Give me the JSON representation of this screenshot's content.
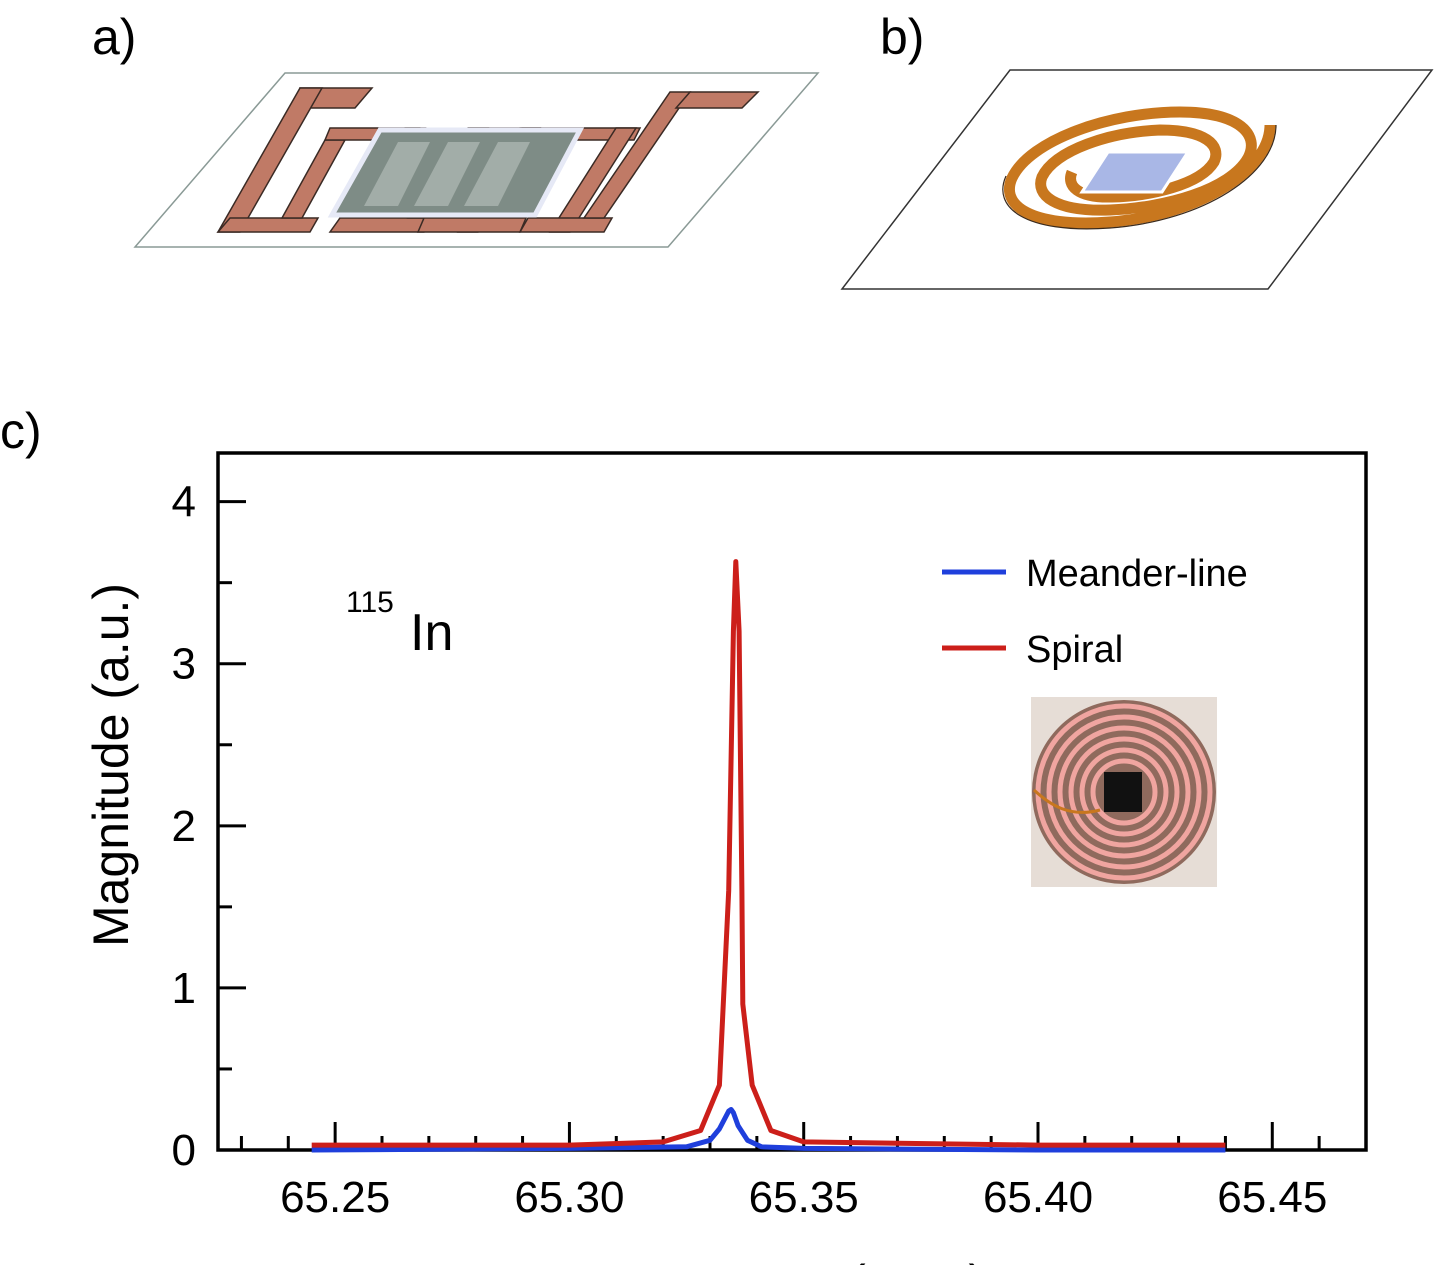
{
  "panels": {
    "a": "a)",
    "b": "b)",
    "c": "c)"
  },
  "colors": {
    "meander": "#1f3fdc",
    "spiral": "#cc1f1a",
    "trace_a": "#c07a66",
    "trace_b": "#c8771e",
    "sample": "#a9b7e6"
  },
  "chart_data": {
    "type": "line",
    "xlabel": "Frequency (MHz)",
    "ylabel": "Magnitude (a.u.)",
    "xlim": [
      65.225,
      65.47
    ],
    "ylim": [
      0,
      4.3
    ],
    "xticks": [
      65.25,
      65.3,
      65.35,
      65.4,
      65.45
    ],
    "xtick_labels": [
      "65.25",
      "65.30",
      "65.35",
      "65.40",
      "65.45"
    ],
    "yticks": [
      0,
      1,
      2,
      3,
      4
    ],
    "ytick_labels": [
      "0",
      "1",
      "2",
      "3",
      "4"
    ],
    "annotation": {
      "superscript": "115",
      "text": "In"
    },
    "legend_position": "top-right",
    "series": [
      {
        "name": "Meander-line",
        "x": [
          65.245,
          65.3,
          65.325,
          65.33,
          65.332,
          65.334,
          65.3345,
          65.335,
          65.336,
          65.338,
          65.341,
          65.35,
          65.4,
          65.44
        ],
        "y": [
          0.0,
          0.01,
          0.02,
          0.06,
          0.13,
          0.24,
          0.25,
          0.23,
          0.15,
          0.06,
          0.02,
          0.01,
          0.0,
          0.0
        ]
      },
      {
        "name": "Spiral",
        "x": [
          65.245,
          65.3,
          65.32,
          65.328,
          65.332,
          65.334,
          65.335,
          65.3355,
          65.3362,
          65.3368,
          65.337,
          65.339,
          65.343,
          65.35,
          65.4,
          65.44
        ],
        "y": [
          0.03,
          0.03,
          0.05,
          0.12,
          0.4,
          1.6,
          3.2,
          3.63,
          3.2,
          1.6,
          0.9,
          0.4,
          0.12,
          0.05,
          0.03,
          0.03
        ]
      }
    ]
  }
}
